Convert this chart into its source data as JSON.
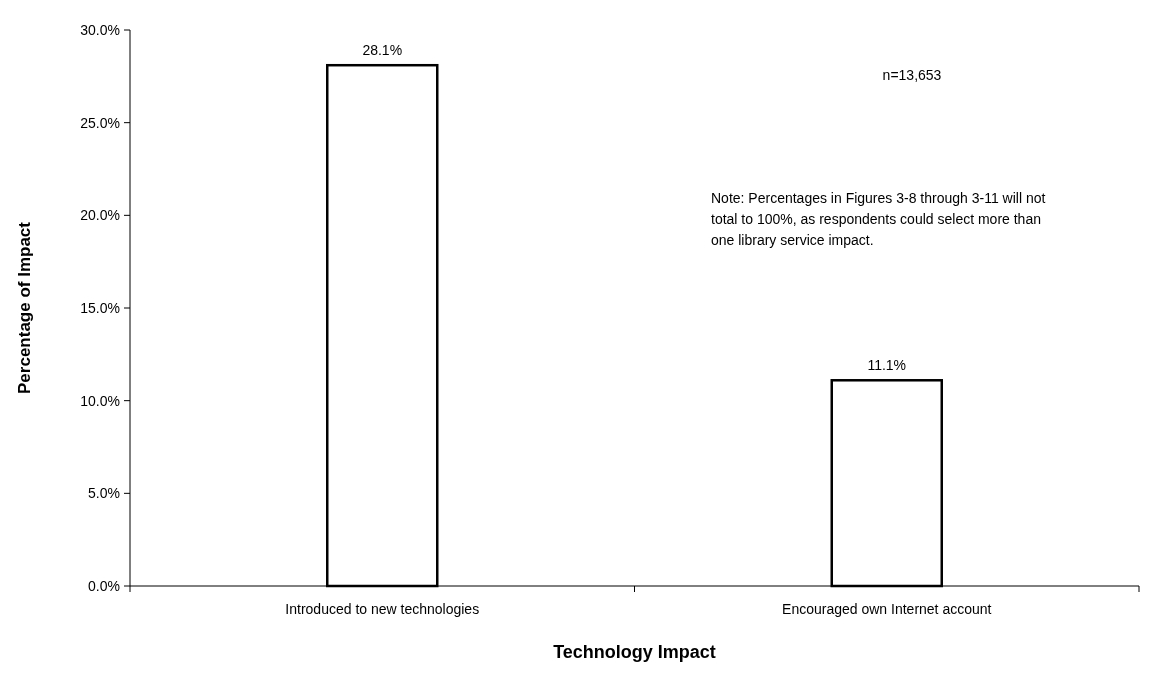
{
  "chart_data": {
    "type": "bar",
    "xlabel": "Technology Impact",
    "ylabel": "Percentage of Impact",
    "categories": [
      "Introduced to new technologies",
      "Encouraged own Internet account"
    ],
    "values": [
      28.1,
      11.1
    ],
    "value_labels": [
      "28.1%",
      "11.1%"
    ],
    "color": "#ffffff",
    "ylim": [
      0,
      30
    ],
    "yticks": [
      {
        "value": 0,
        "label": "0.0%"
      },
      {
        "value": 5,
        "label": "5.0%"
      },
      {
        "value": 10,
        "label": "10.0%"
      },
      {
        "value": 15,
        "label": "15.0%"
      },
      {
        "value": 20,
        "label": "20.0%"
      },
      {
        "value": 25,
        "label": "25.0%"
      },
      {
        "value": 30,
        "label": "30.0%"
      }
    ],
    "grid": false,
    "annotations": [
      "n=13,653",
      "Note: Percentages in Figures 3-8 through 3-11 will not total to 100%, as respondents could select more than one library service impact."
    ]
  }
}
